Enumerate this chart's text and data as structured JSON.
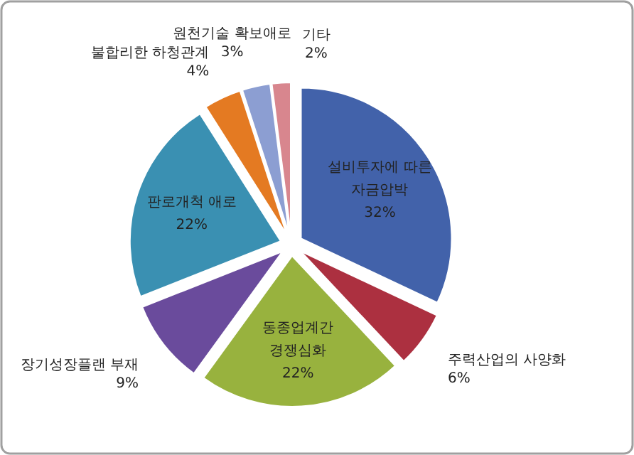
{
  "chart_data": {
    "type": "pie",
    "categories": [
      "설비투자에 따른 자금압박",
      "주력산업의 사양화",
      "동종업계간 경쟁심화",
      "장기성장플랜 부재",
      "판로개척 애로",
      "불합리한 하청관계",
      "원천기술 확보애로",
      "기타"
    ],
    "values": [
      32,
      6,
      22,
      9,
      22,
      4,
      3,
      2
    ],
    "colors": [
      "#4262aa",
      "#ac3040",
      "#98b23e",
      "#6a4b9c",
      "#3a90b2",
      "#e47a22",
      "#8c9ed2",
      "#d8868e"
    ],
    "value_labels": [
      "32%",
      "6%",
      "22%",
      "9%",
      "22%",
      "4%",
      "3%",
      "2%"
    ]
  }
}
